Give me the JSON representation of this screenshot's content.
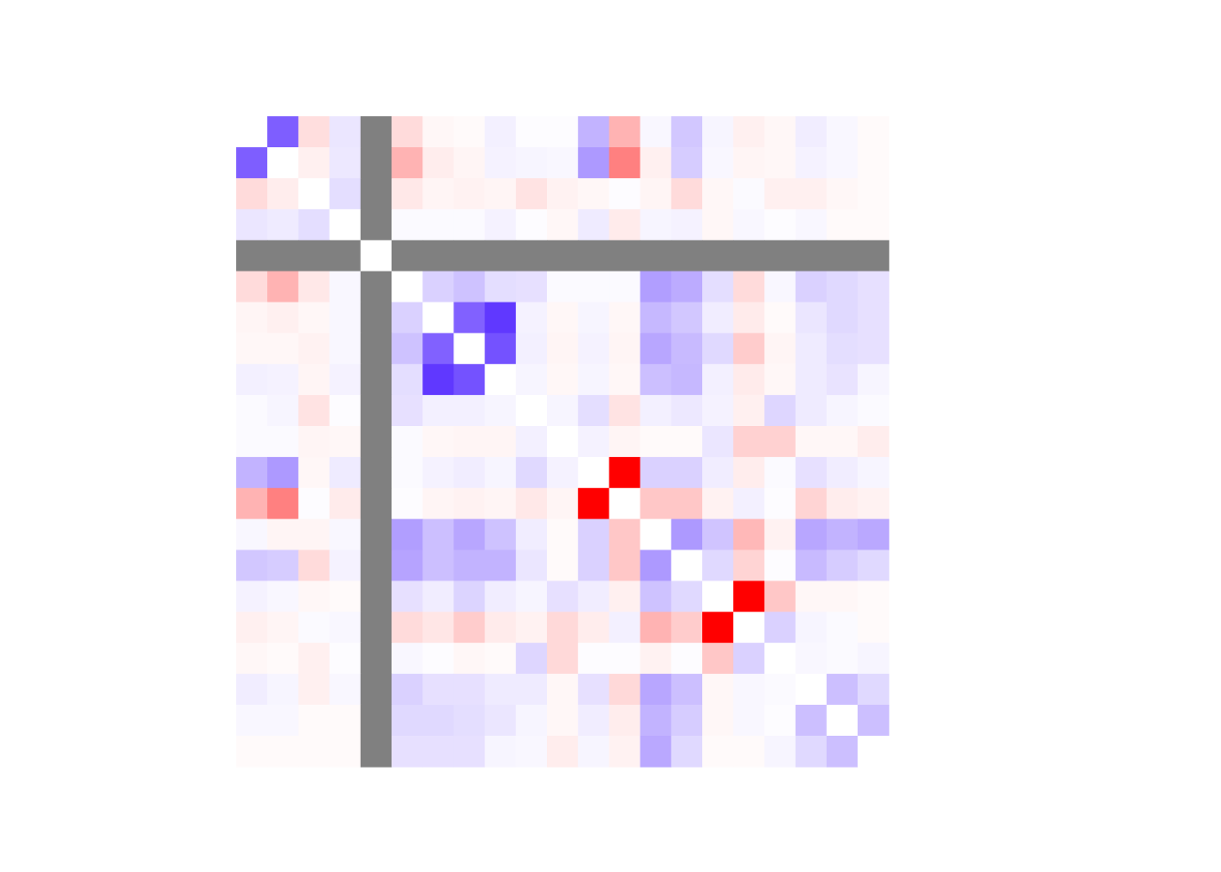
{
  "chart_data": {
    "type": "heatmap",
    "title": "",
    "xlabel": "",
    "ylabel": "",
    "rows": 21,
    "cols": 21,
    "value_range": [
      -1,
      1
    ],
    "diagonal": "blank",
    "missing_variable_index": 4,
    "missing_color": "#808080",
    "colors": {
      "negative": "#ff0000",
      "zero": "#ffffff",
      "positive": "#3300ff"
    },
    "legend": "none",
    "grid": false,
    "values": [
      [
        null,
        0.63,
        -0.13,
        0.1,
        null,
        -0.14,
        -0.03,
        -0.02,
        0.06,
        0.01,
        0.01,
        0.3,
        -0.3,
        0.03,
        0.22,
        0.04,
        -0.06,
        -0.03,
        0.07,
        0.03,
        -0.02
      ],
      [
        0.63,
        null,
        -0.06,
        0.09,
        null,
        -0.3,
        -0.07,
        -0.04,
        0.05,
        0.04,
        0.03,
        0.4,
        -0.5,
        -0.06,
        0.2,
        0.03,
        -0.04,
        -0.03,
        0.05,
        0.03,
        -0.02
      ],
      [
        -0.14,
        -0.07,
        null,
        0.13,
        null,
        -0.09,
        -0.04,
        -0.05,
        -0.04,
        -0.11,
        -0.05,
        -0.03,
        0.01,
        -0.04,
        -0.14,
        -0.03,
        0.02,
        -0.06,
        -0.06,
        -0.03,
        -0.02
      ],
      [
        0.1,
        0.08,
        0.13,
        null,
        null,
        0.02,
        0.02,
        0.02,
        0.05,
        0.01,
        -0.03,
        0.08,
        -0.08,
        0.04,
        0.05,
        -0.03,
        0.03,
        0.01,
        0.03,
        -0.02,
        -0.02
      ],
      [
        null,
        null,
        null,
        null,
        null,
        null,
        null,
        null,
        null,
        null,
        null,
        null,
        null,
        null,
        null,
        null,
        null,
        null,
        null,
        null,
        null
      ],
      [
        -0.14,
        -0.3,
        -0.09,
        0.03,
        null,
        null,
        0.18,
        0.24,
        0.13,
        0.12,
        0.02,
        0.02,
        0.02,
        0.38,
        0.33,
        0.13,
        -0.14,
        0.03,
        0.18,
        0.15,
        0.12
      ],
      [
        -0.04,
        -0.06,
        -0.03,
        0.03,
        null,
        0.18,
        null,
        0.62,
        0.78,
        0.05,
        -0.03,
        0.04,
        -0.03,
        0.28,
        0.22,
        0.07,
        -0.08,
        -0.02,
        0.1,
        0.15,
        0.12
      ],
      [
        -0.03,
        -0.03,
        -0.05,
        0.03,
        null,
        0.24,
        0.62,
        null,
        0.68,
        0.06,
        -0.04,
        0.05,
        -0.04,
        0.35,
        0.27,
        0.15,
        -0.2,
        -0.04,
        0.08,
        0.13,
        0.12
      ],
      [
        0.06,
        0.05,
        -0.04,
        0.05,
        null,
        0.13,
        0.78,
        0.68,
        null,
        0.04,
        -0.03,
        0.04,
        -0.03,
        0.25,
        0.28,
        0.06,
        -0.08,
        -0.03,
        0.08,
        0.11,
        0.04
      ],
      [
        0.02,
        0.04,
        -0.11,
        0.01,
        null,
        0.12,
        0.06,
        0.06,
        0.04,
        null,
        0.04,
        0.13,
        -0.11,
        0.06,
        0.09,
        0.05,
        -0.06,
        0.16,
        0.08,
        0.04,
        0.02
      ],
      [
        0.02,
        0.02,
        -0.04,
        -0.03,
        null,
        0.02,
        -0.03,
        -0.04,
        -0.04,
        0.06,
        null,
        0.05,
        -0.04,
        -0.02,
        -0.02,
        0.1,
        -0.18,
        -0.18,
        -0.03,
        -0.03,
        -0.07
      ],
      [
        0.3,
        0.4,
        -0.03,
        0.08,
        null,
        0.02,
        0.05,
        0.07,
        0.04,
        0.15,
        0.05,
        null,
        -1.0,
        0.18,
        0.18,
        0.07,
        -0.07,
        0.02,
        0.12,
        0.07,
        0.04
      ],
      [
        -0.3,
        -0.5,
        0.01,
        -0.08,
        null,
        0.01,
        -0.04,
        -0.05,
        -0.04,
        -0.09,
        -0.04,
        -1.0,
        null,
        -0.22,
        -0.22,
        -0.05,
        0.06,
        0.01,
        -0.17,
        -0.07,
        -0.05
      ],
      [
        0.03,
        -0.04,
        -0.04,
        0.03,
        null,
        0.38,
        0.25,
        0.35,
        0.24,
        0.07,
        -0.02,
        0.18,
        -0.22,
        null,
        0.4,
        0.23,
        -0.28,
        -0.05,
        0.35,
        0.3,
        0.34
      ],
      [
        0.22,
        0.2,
        -0.14,
        0.05,
        null,
        0.36,
        0.25,
        0.3,
        0.3,
        0.1,
        -0.02,
        0.18,
        -0.22,
        0.4,
        null,
        0.15,
        -0.17,
        0.01,
        0.27,
        0.2,
        0.15
      ],
      [
        0.05,
        0.03,
        -0.03,
        -0.02,
        null,
        0.12,
        0.07,
        0.17,
        0.07,
        0.04,
        0.12,
        0.07,
        -0.06,
        0.24,
        0.15,
        null,
        -1.0,
        -0.22,
        -0.03,
        -0.03,
        -0.02
      ],
      [
        -0.06,
        -0.04,
        0.02,
        0.03,
        null,
        -0.14,
        -0.1,
        -0.2,
        -0.08,
        -0.05,
        -0.15,
        -0.07,
        0.06,
        -0.3,
        -0.2,
        -1.0,
        null,
        0.18,
        0.04,
        0.02,
        -0.02
      ],
      [
        -0.03,
        -0.02,
        -0.06,
        0.01,
        null,
        0.03,
        0.01,
        -0.03,
        -0.02,
        0.16,
        -0.15,
        0.01,
        0.01,
        -0.05,
        0.01,
        -0.22,
        0.18,
        null,
        0.03,
        0.02,
        0.04
      ],
      [
        0.07,
        0.04,
        -0.06,
        0.03,
        null,
        0.18,
        0.12,
        0.12,
        0.08,
        0.08,
        -0.03,
        0.12,
        -0.15,
        0.35,
        0.25,
        -0.03,
        0.03,
        0.02,
        null,
        0.25,
        0.15
      ],
      [
        0.03,
        0.03,
        -0.02,
        -0.02,
        null,
        0.15,
        0.15,
        0.13,
        0.1,
        0.04,
        -0.03,
        0.07,
        -0.07,
        0.3,
        0.2,
        -0.03,
        0.03,
        0.01,
        0.25,
        null,
        0.25
      ],
      [
        -0.02,
        -0.02,
        -0.02,
        -0.02,
        null,
        0.12,
        0.12,
        0.12,
        0.04,
        0.03,
        -0.07,
        0.04,
        -0.05,
        0.34,
        0.15,
        -0.02,
        -0.02,
        0.04,
        0.15,
        0.25,
        null
      ]
    ]
  }
}
